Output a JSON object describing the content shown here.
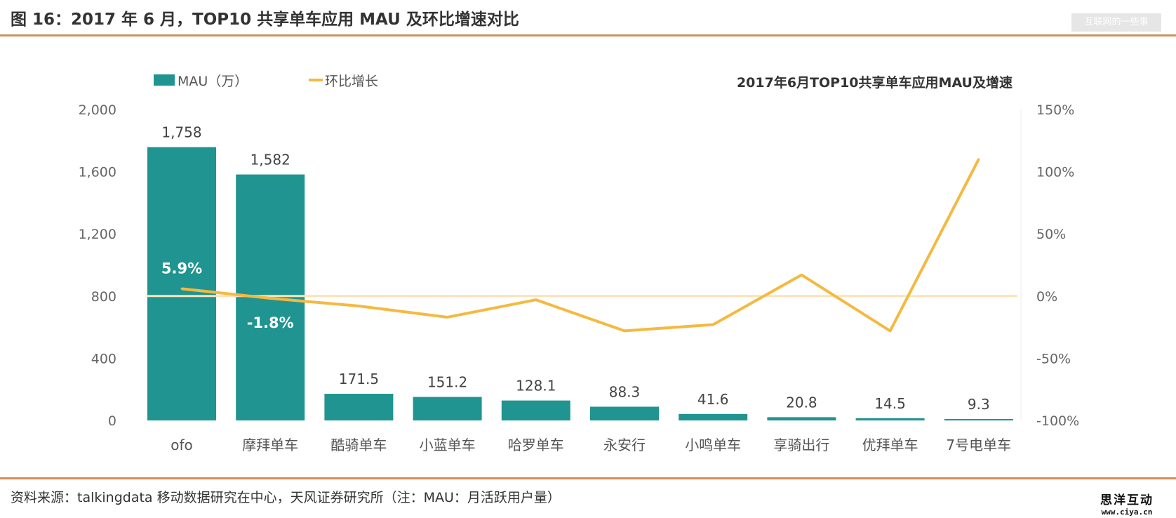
{
  "header": {
    "title": "图 16：2017 年 6 月，TOP10 共享单车应用 MAU 及环比增速对比",
    "watermark": "互联网的一些事"
  },
  "footer": {
    "source": "资料来源：talkingdata 移动数据研究在中心，天风证券研究所（注：MAU：月活跃用户量）",
    "logo_line1": "思洋互动",
    "logo_line2": "www.ciya.cn"
  },
  "colors": {
    "bar": "#1f9490",
    "line": "#f5b941",
    "zero_line": "#fbe3bb",
    "rule": "#c8955c"
  },
  "chart_data": {
    "type": "bar+line",
    "title": "2017年6月TOP10共享单车应用MAU及增速",
    "categories": [
      "ofo",
      "摩拜单车",
      "酷骑单车",
      "小蓝单车",
      "哈罗单车",
      "永安行",
      "小鸣单车",
      "享骑出行",
      "优拜单车",
      "7号电单车"
    ],
    "series": [
      {
        "name": "MAU（万）",
        "type": "bar",
        "axis": "left",
        "values": [
          1758,
          1582,
          171.5,
          151.2,
          128.1,
          88.3,
          41.6,
          20.8,
          14.5,
          9.3
        ],
        "labels": [
          "1,758",
          "1,582",
          "171.5",
          "151.2",
          "128.1",
          "88.3",
          "41.6",
          "20.8",
          "14.5",
          "9.3"
        ]
      },
      {
        "name": "环比增长",
        "type": "line",
        "axis": "right",
        "values": [
          5.9,
          -1.8,
          -8,
          -17,
          -3,
          -28,
          -23,
          17,
          -28,
          110
        ],
        "point_labels": {
          "0": "5.9%",
          "1": "-1.8%"
        }
      }
    ],
    "left_axis": {
      "range": [
        0,
        2000
      ],
      "ticks": [
        0,
        400,
        800,
        1200,
        1600,
        2000
      ],
      "tick_labels": [
        "0",
        "400",
        "800",
        "1,200",
        "1,600",
        "2,000"
      ]
    },
    "right_axis": {
      "range": [
        -100,
        150
      ],
      "ticks": [
        -100,
        -50,
        0,
        50,
        100,
        150
      ],
      "tick_labels": [
        "-100%",
        "-50%",
        "0%",
        "50%",
        "100%",
        "150%"
      ]
    },
    "grid": false,
    "legend": "top-left"
  }
}
